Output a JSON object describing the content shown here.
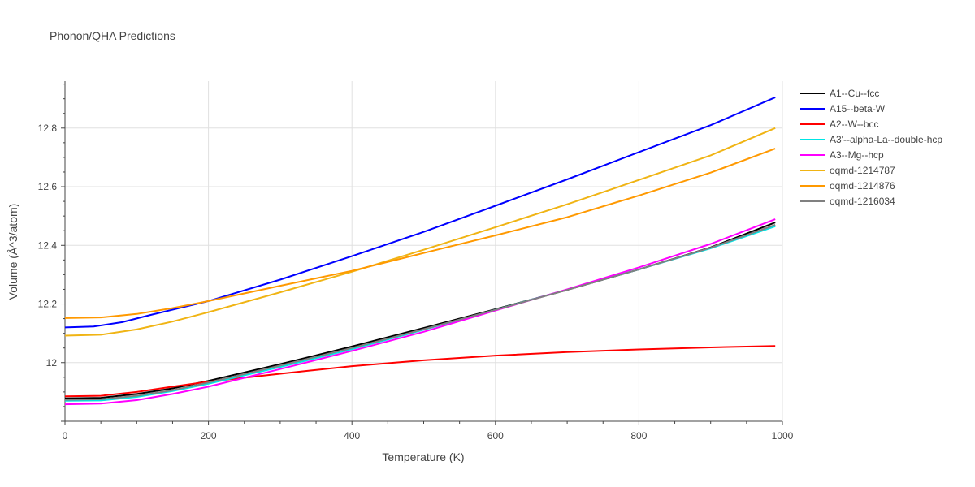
{
  "chart_data": {
    "type": "line",
    "title": "Phonon/QHA Predictions",
    "xlabel": "Temperature (K)",
    "ylabel": "Volume (Å^3/atom)",
    "xlim": [
      0,
      1000
    ],
    "ylim": [
      11.8,
      12.96
    ],
    "x_ticks": [
      0,
      200,
      400,
      600,
      800,
      1000
    ],
    "y_ticks": [
      12,
      12.2,
      12.4,
      12.6,
      12.8
    ],
    "x_tick_labels": [
      "0",
      "200",
      "400",
      "600",
      "800",
      "1000"
    ],
    "y_tick_labels": [
      "12",
      "12.2",
      "12.4",
      "12.6",
      "12.8"
    ],
    "grid": true,
    "legend_position": "right",
    "series": [
      {
        "name": "A1--Cu--fcc",
        "color": "#000000",
        "x": [
          0,
          50,
          100,
          150,
          200,
          300,
          400,
          500,
          600,
          700,
          800,
          900,
          990
        ],
        "y": [
          11.878,
          11.88,
          11.893,
          11.912,
          11.938,
          11.995,
          12.055,
          12.118,
          12.182,
          12.248,
          12.318,
          12.393,
          12.478
        ]
      },
      {
        "name": "A15--beta-W",
        "color": "#0000ff",
        "x": [
          0,
          40,
          80,
          120,
          200,
          300,
          400,
          500,
          600,
          700,
          800,
          900,
          990
        ],
        "y": [
          12.12,
          12.123,
          12.138,
          12.163,
          12.21,
          12.283,
          12.363,
          12.446,
          12.535,
          12.625,
          12.718,
          12.81,
          12.905
        ]
      },
      {
        "name": "A2--W--bcc",
        "color": "#ff0000",
        "x": [
          0,
          50,
          100,
          150,
          200,
          300,
          400,
          500,
          600,
          700,
          800,
          900,
          990
        ],
        "y": [
          11.885,
          11.887,
          11.9,
          11.918,
          11.935,
          11.962,
          11.988,
          12.008,
          12.024,
          12.036,
          12.045,
          12.052,
          12.057
        ]
      },
      {
        "name": "A3'--alpha-La--double-hcp",
        "color": "#00e5e5",
        "x": [
          0,
          50,
          100,
          150,
          200,
          300,
          400,
          500,
          600,
          700,
          800,
          900,
          990
        ],
        "y": [
          11.87,
          11.871,
          11.883,
          11.903,
          11.928,
          11.985,
          12.046,
          12.112,
          12.18,
          12.249,
          12.318,
          12.39,
          12.465
        ]
      },
      {
        "name": "A3--Mg--hcp",
        "color": "#ff00ff",
        "x": [
          0,
          50,
          100,
          150,
          200,
          300,
          400,
          500,
          600,
          700,
          800,
          900,
          990
        ],
        "y": [
          11.858,
          11.86,
          11.872,
          11.893,
          11.918,
          11.978,
          12.04,
          12.105,
          12.178,
          12.25,
          12.325,
          12.405,
          12.489
        ]
      },
      {
        "name": "oqmd-1214787",
        "color": "#f0b414",
        "x": [
          0,
          50,
          100,
          150,
          200,
          300,
          400,
          500,
          600,
          700,
          800,
          900,
          990
        ],
        "y": [
          12.092,
          12.095,
          12.113,
          12.14,
          12.172,
          12.24,
          12.31,
          12.385,
          12.462,
          12.54,
          12.623,
          12.707,
          12.8
        ]
      },
      {
        "name": "oqmd-1214876",
        "color": "#ff9900",
        "x": [
          0,
          50,
          100,
          150,
          200,
          300,
          400,
          500,
          600,
          700,
          800,
          900,
          990
        ],
        "y": [
          12.152,
          12.154,
          12.166,
          12.186,
          12.21,
          12.262,
          12.313,
          12.374,
          12.434,
          12.496,
          12.57,
          12.648,
          12.73
        ]
      },
      {
        "name": "oqmd-1216034",
        "color": "#808080",
        "x": [
          0,
          50,
          100,
          150,
          200,
          300,
          400,
          500,
          600,
          700,
          800,
          900,
          990
        ],
        "y": [
          11.873,
          11.875,
          11.887,
          11.906,
          11.932,
          11.99,
          12.05,
          12.114,
          12.18,
          12.248,
          12.318,
          12.392,
          12.47
        ]
      }
    ]
  }
}
